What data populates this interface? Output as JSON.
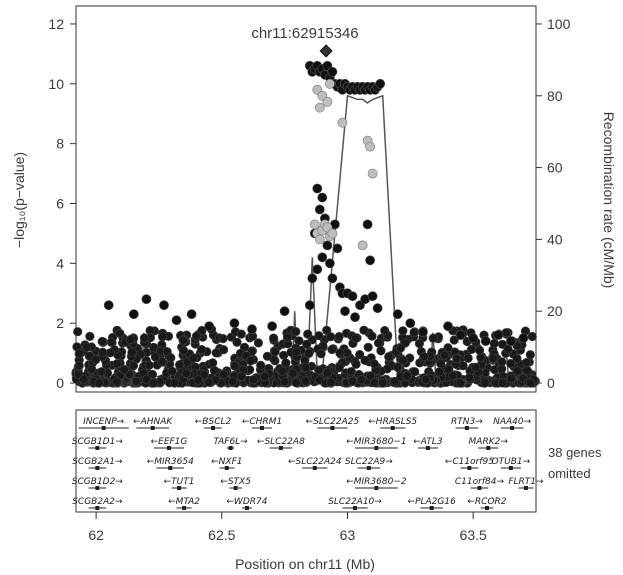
{
  "chart_data": {
    "type": "scatter",
    "title": "chr11:62915346",
    "xlabel": "Position on chr11 (Mb)",
    "ylabel_left": "−log₁₀(p−value)",
    "ylabel_right": "Recombination rate (cM/Mb)",
    "xlim": [
      61.92,
      63.75
    ],
    "ylim_left": [
      -0.3,
      12.6
    ],
    "ylim_right": [
      -2.5,
      105
    ],
    "x_ticks": [
      62,
      62.5,
      63,
      63.5
    ],
    "x_tick_labels": [
      "62",
      "62.5",
      "63",
      "63.5"
    ],
    "y_left_ticks": [
      0,
      2,
      4,
      6,
      8,
      10,
      12
    ],
    "y_left_tick_labels": [
      "0",
      "2",
      "4",
      "6",
      "8",
      "10",
      "12"
    ],
    "y_right_ticks": [
      0,
      20,
      40,
      60,
      80,
      100
    ],
    "y_right_tick_labels": [
      "0",
      "20",
      "40",
      "60",
      "80",
      "100"
    ],
    "grid": false,
    "colors": {
      "high_ld": "#111111",
      "low_ld": "#bdbdbd",
      "recomb_line": "#555555",
      "lead_snp": "#333333"
    },
    "lead_snp": {
      "x": 62.915,
      "y": 11.1
    },
    "series": [
      {
        "kind": "points",
        "values": [
          [
            62.85,
            10.6
          ],
          [
            62.86,
            10.4
          ],
          [
            62.87,
            10.5
          ],
          [
            62.88,
            10.6
          ],
          [
            62.89,
            10.4
          ],
          [
            62.9,
            10.5
          ],
          [
            62.91,
            10.3
          ],
          [
            62.92,
            10.6
          ],
          [
            62.93,
            10.2
          ],
          [
            62.94,
            10.4
          ],
          [
            62.95,
            10.0
          ],
          [
            62.96,
            9.9
          ],
          [
            62.97,
            10.0
          ],
          [
            62.98,
            9.8
          ],
          [
            62.99,
            10.0
          ],
          [
            63.0,
            9.9
          ],
          [
            63.01,
            9.8
          ],
          [
            63.02,
            9.9
          ],
          [
            63.03,
            9.8
          ],
          [
            63.04,
            9.9
          ],
          [
            63.05,
            9.8
          ],
          [
            63.06,
            9.9
          ],
          [
            63.07,
            9.8
          ],
          [
            63.08,
            9.9
          ],
          [
            63.09,
            9.8
          ],
          [
            63.1,
            9.9
          ],
          [
            63.11,
            9.8
          ],
          [
            63.12,
            9.9
          ],
          [
            63.13,
            10.0
          ],
          [
            62.88,
            6.5
          ],
          [
            62.89,
            5.8
          ],
          [
            62.9,
            6.2
          ],
          [
            62.91,
            5.5
          ],
          [
            62.87,
            5.0
          ],
          [
            62.92,
            4.6
          ],
          [
            62.93,
            4.0
          ],
          [
            62.95,
            5.3
          ],
          [
            62.96,
            4.5
          ],
          [
            62.94,
            3.5
          ],
          [
            62.9,
            4.2
          ],
          [
            63.08,
            5.3
          ],
          [
            63.09,
            4.1
          ],
          [
            62.97,
            3.2
          ],
          [
            62.98,
            3.0
          ],
          [
            63.0,
            3.0
          ],
          [
            63.02,
            2.9
          ],
          [
            63.05,
            2.6
          ],
          [
            63.07,
            2.8
          ],
          [
            63.1,
            2.9
          ],
          [
            63.12,
            2.5
          ],
          [
            62.99,
            2.4
          ],
          [
            63.03,
            2.2
          ],
          [
            62.86,
            3.5
          ],
          [
            62.85,
            2.6
          ],
          [
            62.88,
            3.8
          ],
          [
            62.05,
            2.6
          ],
          [
            62.15,
            2.3
          ],
          [
            62.2,
            2.8
          ],
          [
            62.27,
            2.6
          ],
          [
            62.32,
            2.1
          ],
          [
            62.38,
            2.3
          ],
          [
            62.45,
            1.9
          ],
          [
            62.55,
            2.0
          ],
          [
            62.62,
            1.8
          ],
          [
            62.7,
            1.9
          ],
          [
            62.75,
            2.4
          ],
          [
            63.2,
            2.3
          ],
          [
            63.25,
            2.0
          ],
          [
            63.3,
            1.7
          ],
          [
            63.4,
            1.9
          ],
          [
            63.45,
            1.6
          ],
          [
            63.5,
            1.5
          ],
          [
            63.55,
            1.4
          ],
          [
            63.6,
            1.6
          ],
          [
            63.65,
            1.4
          ],
          [
            63.7,
            1.5
          ]
        ]
      },
      {
        "kind": "points_low_ld",
        "values": [
          [
            62.88,
            9.8
          ],
          [
            62.9,
            9.6
          ],
          [
            62.92,
            9.4
          ],
          [
            62.89,
            9.2
          ],
          [
            62.93,
            10.0
          ],
          [
            62.98,
            8.7
          ],
          [
            63.08,
            8.1
          ],
          [
            63.09,
            7.9
          ],
          [
            63.1,
            7.0
          ],
          [
            63.06,
            4.6
          ],
          [
            62.87,
            5.3
          ],
          [
            62.88,
            5.0
          ],
          [
            62.9,
            5.1
          ],
          [
            62.91,
            5.3
          ],
          [
            62.92,
            5.2
          ],
          [
            62.93,
            4.9
          ],
          [
            62.89,
            4.8
          ],
          [
            62.94,
            5.0
          ]
        ]
      },
      {
        "kind": "recombination",
        "x": [
          61.92,
          62.1,
          62.18,
          62.19,
          62.2,
          62.4,
          62.6,
          62.78,
          62.79,
          62.8,
          62.84,
          62.86,
          62.87,
          62.88,
          62.9,
          63.0,
          63.04,
          63.06,
          63.08,
          63.1,
          63.14,
          63.2,
          63.33,
          63.34,
          63.35,
          63.5,
          63.62,
          63.63,
          63.64,
          63.75
        ],
        "y": [
          1,
          1,
          2,
          14,
          2,
          1,
          1,
          2,
          20,
          3,
          2,
          35,
          18,
          2,
          3,
          80,
          79,
          79,
          78,
          79,
          80,
          3,
          2,
          14,
          3,
          1,
          2,
          11,
          2,
          1
        ]
      }
    ],
    "gene_track": {
      "omitted_note": [
        "38 genes",
        "omitted"
      ],
      "genes": [
        {
          "name": "INCENP",
          "start": 61.93,
          "end": 62.13,
          "row": 0,
          "strand": "+"
        },
        {
          "name": "AHNAK",
          "start": 62.16,
          "end": 62.29,
          "row": 0,
          "strand": "-"
        },
        {
          "name": "BSCL2",
          "start": 62.43,
          "end": 62.5,
          "row": 0,
          "strand": "-"
        },
        {
          "name": "CHRM1",
          "start": 62.62,
          "end": 62.7,
          "row": 0,
          "strand": "-"
        },
        {
          "name": "SLC22A25",
          "start": 62.88,
          "end": 63.0,
          "row": 0,
          "strand": "-"
        },
        {
          "name": "HRASLS5",
          "start": 63.13,
          "end": 63.23,
          "row": 0,
          "strand": "-"
        },
        {
          "name": "RTN3",
          "start": 63.43,
          "end": 63.52,
          "row": 0,
          "strand": "+"
        },
        {
          "name": "NAA40",
          "start": 63.61,
          "end": 63.7,
          "row": 0,
          "strand": "+"
        },
        {
          "name": "SCGB1D1",
          "start": 61.97,
          "end": 62.04,
          "row": 1,
          "strand": "+"
        },
        {
          "name": "EEF1G",
          "start": 62.23,
          "end": 62.35,
          "row": 1,
          "strand": "-"
        },
        {
          "name": "TAF6L",
          "start": 62.52,
          "end": 62.55,
          "row": 1,
          "strand": "+"
        },
        {
          "name": "SLC22A8",
          "start": 62.69,
          "end": 62.78,
          "row": 1,
          "strand": "-"
        },
        {
          "name": "MIR3680−1",
          "start": 63.03,
          "end": 63.2,
          "row": 1,
          "strand": "-"
        },
        {
          "name": "ATL3",
          "start": 63.28,
          "end": 63.36,
          "row": 1,
          "strand": "-"
        },
        {
          "name": "MARK2",
          "start": 63.52,
          "end": 63.6,
          "row": 1,
          "strand": "+"
        },
        {
          "name": "SCGB2A1",
          "start": 61.97,
          "end": 62.04,
          "row": 2,
          "strand": "+"
        },
        {
          "name": "MIR3654",
          "start": 62.24,
          "end": 62.35,
          "row": 2,
          "strand": "-"
        },
        {
          "name": "NXF1",
          "start": 62.49,
          "end": 62.55,
          "row": 2,
          "strand": "-"
        },
        {
          "name": "SLC22A24",
          "start": 62.82,
          "end": 62.92,
          "row": 2,
          "strand": "-"
        },
        {
          "name": "SLC22A9",
          "start": 63.04,
          "end": 63.13,
          "row": 2,
          "strand": "+"
        },
        {
          "name": "C11orf95",
          "start": 63.45,
          "end": 63.52,
          "row": 2,
          "strand": "-"
        },
        {
          "name": "OTUB1",
          "start": 63.61,
          "end": 63.69,
          "row": 2,
          "strand": "+"
        },
        {
          "name": "SCGB1D2",
          "start": 61.97,
          "end": 62.04,
          "row": 3,
          "strand": "+"
        },
        {
          "name": "TUT1",
          "start": 62.3,
          "end": 62.36,
          "row": 3,
          "strand": "-"
        },
        {
          "name": "STX5",
          "start": 62.53,
          "end": 62.58,
          "row": 3,
          "strand": "-"
        },
        {
          "name": "MIR3680−2",
          "start": 63.03,
          "end": 63.2,
          "row": 3,
          "strand": "-"
        },
        {
          "name": "C11orf84",
          "start": 63.49,
          "end": 63.56,
          "row": 3,
          "strand": "+"
        },
        {
          "name": "FLRT1",
          "start": 63.68,
          "end": 63.74,
          "row": 3,
          "strand": "+"
        },
        {
          "name": "SCGB2A2",
          "start": 61.97,
          "end": 62.04,
          "row": 4,
          "strand": "+"
        },
        {
          "name": "MTA2",
          "start": 62.32,
          "end": 62.38,
          "row": 4,
          "strand": "-"
        },
        {
          "name": "WDR74",
          "start": 62.58,
          "end": 62.62,
          "row": 4,
          "strand": "-"
        },
        {
          "name": "SLC22A10",
          "start": 62.98,
          "end": 63.08,
          "row": 4,
          "strand": "+"
        },
        {
          "name": "PLA2G16",
          "start": 63.29,
          "end": 63.38,
          "row": 4,
          "strand": "-"
        },
        {
          "name": "RCOR2",
          "start": 63.53,
          "end": 63.58,
          "row": 4,
          "strand": "-"
        }
      ]
    }
  }
}
